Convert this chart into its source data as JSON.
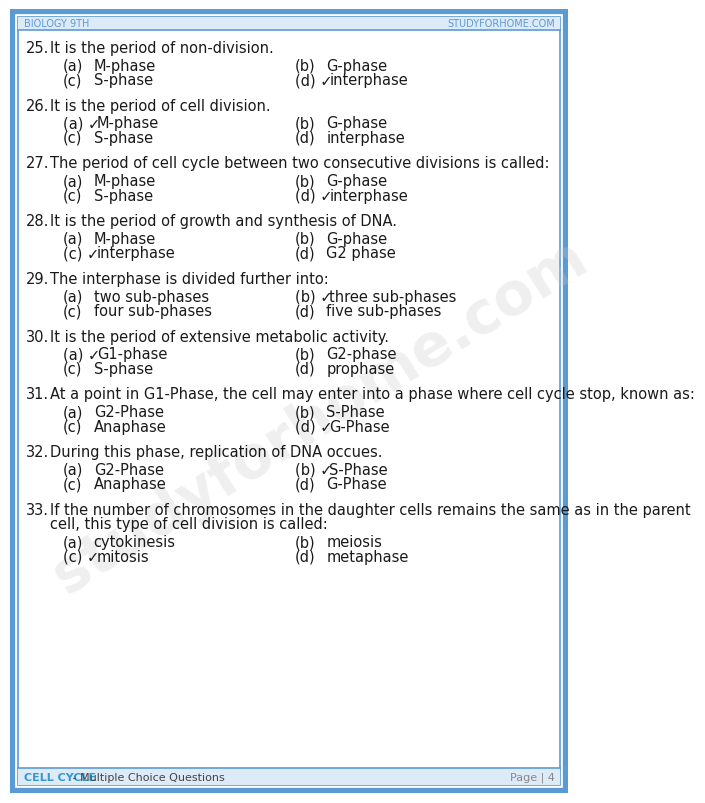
{
  "header_left": "Biology 9th",
  "header_right": "studyforhome.com",
  "footer_left": "CELL CYCLE",
  "footer_left2": " - Multiple Choice Questions",
  "footer_right": "Page | 4",
  "bg_color": "#ffffff",
  "border_outer_color": "#5b9bd5",
  "border_inner_color": "#5b9bd5",
  "header_bg_color": "#ddeaf7",
  "header_text_color": "#5b9bd5",
  "footer_bg_color": "#ddeaf7",
  "footer_topic_color": "#3399cc",
  "footer_text_color": "#888888",
  "text_color": "#1a1a1a",
  "watermark_color": "#c8c8c8",
  "questions": [
    {
      "num": "25.",
      "question": "It is the period of non-division.",
      "multiline": false,
      "options": [
        {
          "label": "(a)",
          "text": "M-phase",
          "correct": false
        },
        {
          "label": "(b)",
          "text": "G-phase",
          "correct": false
        },
        {
          "label": "(c)",
          "text": "S-phase",
          "correct": false
        },
        {
          "label": "(d)",
          "text": "interphase",
          "correct": true
        }
      ]
    },
    {
      "num": "26.",
      "question": "It is the period of cell division.",
      "multiline": false,
      "options": [
        {
          "label": "(a)",
          "text": "M-phase",
          "correct": true
        },
        {
          "label": "(b)",
          "text": "G-phase",
          "correct": false
        },
        {
          "label": "(c)",
          "text": "S-phase",
          "correct": false
        },
        {
          "label": "(d)",
          "text": "interphase",
          "correct": false
        }
      ]
    },
    {
      "num": "27.",
      "question": "The period of cell cycle between two consecutive divisions is called:",
      "multiline": false,
      "options": [
        {
          "label": "(a)",
          "text": "M-phase",
          "correct": false
        },
        {
          "label": "(b)",
          "text": "G-phase",
          "correct": false
        },
        {
          "label": "(c)",
          "text": "S-phase",
          "correct": false
        },
        {
          "label": "(d)",
          "text": "interphase",
          "correct": true
        }
      ]
    },
    {
      "num": "28.",
      "question": "It is the period of growth and synthesis of DNA.",
      "multiline": false,
      "options": [
        {
          "label": "(a)",
          "text": "M-phase",
          "correct": false
        },
        {
          "label": "(b)",
          "text": "G-phase",
          "correct": false
        },
        {
          "label": "(c)",
          "text": "interphase",
          "correct": true
        },
        {
          "label": "(d)",
          "text": "G2 phase",
          "correct": false
        }
      ]
    },
    {
      "num": "29.",
      "question": "The interphase is divided further into:",
      "multiline": false,
      "options": [
        {
          "label": "(a)",
          "text": "two sub-phases",
          "correct": false
        },
        {
          "label": "(b)",
          "text": "three sub-phases",
          "correct": true
        },
        {
          "label": "(c)",
          "text": "four sub-phases",
          "correct": false
        },
        {
          "label": "(d)",
          "text": "five sub-phases",
          "correct": false
        }
      ]
    },
    {
      "num": "30.",
      "question": "It is the period of extensive metabolic activity.",
      "multiline": false,
      "options": [
        {
          "label": "(a)",
          "text": "G1-phase",
          "correct": true
        },
        {
          "label": "(b)",
          "text": "G2-phase",
          "correct": false
        },
        {
          "label": "(c)",
          "text": "S-phase",
          "correct": false
        },
        {
          "label": "(d)",
          "text": "prophase",
          "correct": false
        }
      ]
    },
    {
      "num": "31.",
      "question": "At a point in G1-Phase, the cell may enter into a phase where cell cycle stop, known as:",
      "multiline": false,
      "options": [
        {
          "label": "(a)",
          "text": "G2-Phase",
          "correct": false
        },
        {
          "label": "(b)",
          "text": "S-Phase",
          "correct": false
        },
        {
          "label": "(c)",
          "text": "Anaphase",
          "correct": false
        },
        {
          "label": "(d)",
          "text": "G-Phase",
          "correct": true
        }
      ]
    },
    {
      "num": "32.",
      "question": "During this phase, replication of DNA occues.",
      "multiline": false,
      "options": [
        {
          "label": "(a)",
          "text": "G2-Phase",
          "correct": false
        },
        {
          "label": "(b)",
          "text": "S-Phase",
          "correct": true
        },
        {
          "label": "(c)",
          "text": "Anaphase",
          "correct": false
        },
        {
          "label": "(d)",
          "text": "G-Phase",
          "correct": false
        }
      ]
    },
    {
      "num": "33.",
      "question": "If the number of chromosomes in the daughter cells remains the same as in the parent cell, this type of cell division is called:",
      "multiline": true,
      "options": [
        {
          "label": "(a)",
          "text": "cytokinesis",
          "correct": false
        },
        {
          "label": "(b)",
          "text": "meiosis",
          "correct": false
        },
        {
          "label": "(c)",
          "text": "mitosis",
          "correct": true
        },
        {
          "label": "(d)",
          "text": "metaphase",
          "correct": false
        }
      ]
    }
  ]
}
